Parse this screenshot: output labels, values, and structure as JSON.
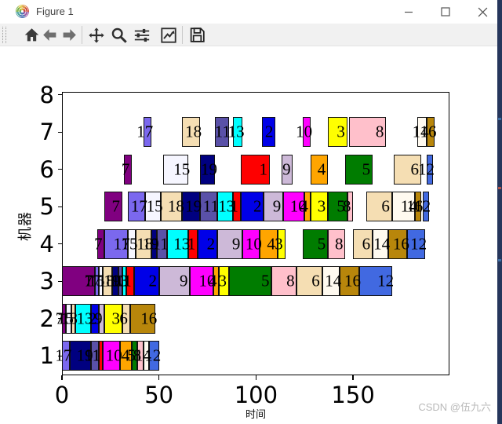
{
  "window": {
    "title": "Figure 1"
  },
  "toolbar": {
    "icons": [
      "home",
      "back",
      "forward",
      "pan",
      "zoom-to-rect",
      "configure-subplots",
      "edit-axis",
      "save"
    ]
  },
  "watermark": "CSDN @伍九六",
  "chart_data": {
    "type": "bar",
    "subtype": "gantt-schedule",
    "title": "",
    "xlabel": "时间",
    "ylabel": "机器",
    "x_ticks": [
      0,
      50,
      100,
      150
    ],
    "y_ticks": [
      1,
      2,
      3,
      4,
      5,
      6,
      7,
      8
    ],
    "xlim": [
      0,
      200
    ],
    "ylim": [
      0.5,
      8
    ],
    "grid": false,
    "legend": "none",
    "job_colors": {
      "1": "#fe0000",
      "2": "#0000e8",
      "3": "#ffff00",
      "4": "#ffa500",
      "5": "#007c00",
      "6": "#f5deb3",
      "7": "#800080",
      "8": "#ffc0cb",
      "9": "#cdb9d8",
      "10": "#ff00ff",
      "11": "#5a51a8",
      "12": "#4169e1",
      "13": "#00ffff",
      "14": "#fffaf0",
      "15": "#f6f6ff",
      "16": "#b8860b",
      "17": "#7b68ee",
      "18": "#f5deb3",
      "19": "#000080"
    },
    "machines": [
      {
        "machine": 1,
        "bars": [
          [
            17,
            0,
            4
          ],
          [
            19,
            4,
            15
          ],
          [
            11,
            15,
            19
          ],
          [
            1,
            19,
            21
          ],
          [
            10,
            21,
            30
          ],
          [
            4,
            30,
            36
          ],
          [
            5,
            36,
            39
          ],
          [
            8,
            39,
            42
          ],
          [
            14,
            42,
            45
          ],
          [
            12,
            45,
            50
          ]
        ]
      },
      {
        "machine": 2,
        "bars": [
          [
            7,
            0,
            2
          ],
          [
            15,
            2,
            5
          ],
          [
            18,
            5,
            7
          ],
          [
            13,
            7,
            15
          ],
          [
            2,
            15,
            19
          ],
          [
            9,
            19,
            22
          ],
          [
            3,
            22,
            31
          ],
          [
            6,
            31,
            35
          ],
          [
            16,
            35,
            48
          ]
        ]
      },
      {
        "machine": 3,
        "bars": [
          [
            7,
            0,
            17
          ],
          [
            17,
            17,
            19
          ],
          [
            15,
            19,
            21
          ],
          [
            18,
            21,
            26
          ],
          [
            19,
            26,
            29
          ],
          [
            11,
            29,
            31
          ],
          [
            13,
            31,
            33
          ],
          [
            1,
            33,
            37
          ],
          [
            2,
            37,
            50
          ],
          [
            9,
            50,
            66
          ],
          [
            10,
            66,
            78
          ],
          [
            4,
            78,
            81
          ],
          [
            3,
            81,
            86
          ],
          [
            5,
            86,
            108
          ],
          [
            8,
            108,
            121
          ],
          [
            6,
            121,
            134
          ],
          [
            14,
            134,
            143
          ],
          [
            16,
            143,
            153
          ],
          [
            12,
            153,
            170
          ]
        ]
      },
      {
        "machine": 4,
        "bars": [
          [
            7,
            18,
            22
          ],
          [
            17,
            22,
            34
          ],
          [
            15,
            34,
            38
          ],
          [
            18,
            38,
            46
          ],
          [
            19,
            46,
            49
          ],
          [
            11,
            49,
            54
          ],
          [
            13,
            54,
            65
          ],
          [
            1,
            65,
            70
          ],
          [
            2,
            70,
            80
          ],
          [
            9,
            80,
            93
          ],
          [
            10,
            93,
            102
          ],
          [
            4,
            102,
            111
          ],
          [
            3,
            111,
            115
          ],
          [
            5,
            124,
            137
          ],
          [
            8,
            137,
            146
          ],
          [
            6,
            150,
            160
          ],
          [
            14,
            160,
            168
          ],
          [
            16,
            168,
            178
          ],
          [
            12,
            178,
            187
          ]
        ]
      },
      {
        "machine": 5,
        "bars": [
          [
            7,
            22,
            31
          ],
          [
            17,
            34,
            43
          ],
          [
            15,
            43,
            51
          ],
          [
            18,
            51,
            62
          ],
          [
            19,
            62,
            71
          ],
          [
            11,
            71,
            80
          ],
          [
            13,
            80,
            88
          ],
          [
            1,
            88,
            92
          ],
          [
            2,
            92,
            104
          ],
          [
            9,
            104,
            114
          ],
          [
            10,
            114,
            125
          ],
          [
            4,
            125,
            128
          ],
          [
            3,
            128,
            137
          ],
          [
            5,
            137,
            147
          ],
          [
            8,
            147,
            150
          ],
          [
            6,
            157,
            170
          ],
          [
            14,
            170,
            182
          ],
          [
            16,
            182,
            185
          ],
          [
            12,
            186,
            189
          ]
        ]
      },
      {
        "machine": 6,
        "bars": [
          [
            7,
            32,
            36
          ],
          [
            15,
            52,
            65
          ],
          [
            19,
            71,
            79
          ],
          [
            1,
            92,
            107
          ],
          [
            9,
            113,
            119
          ],
          [
            4,
            128,
            137
          ],
          [
            5,
            146,
            160
          ],
          [
            6,
            171,
            185
          ],
          [
            12,
            188,
            191
          ]
        ]
      },
      {
        "machine": 7,
        "bars": [
          [
            17,
            42,
            46
          ],
          [
            18,
            62,
            71
          ],
          [
            11,
            79,
            86
          ],
          [
            13,
            88,
            93
          ],
          [
            2,
            103,
            110
          ],
          [
            10,
            124,
            128
          ],
          [
            3,
            137,
            147
          ],
          [
            8,
            148,
            167
          ],
          [
            14,
            183,
            188
          ],
          [
            16,
            188,
            192
          ]
        ]
      }
    ]
  }
}
